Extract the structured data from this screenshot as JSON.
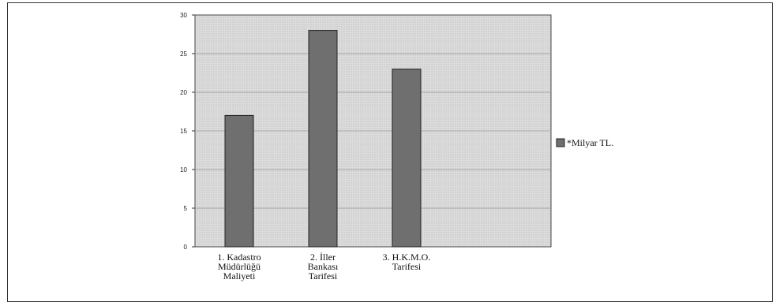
{
  "chart_data": {
    "type": "bar",
    "categories": [
      [
        "1. Kadastro",
        "Müdürlüğü",
        "Maliyeti"
      ],
      [
        "2. İller",
        "Bankası",
        "Tarifesi"
      ],
      [
        "3. H.K.M.O.",
        "Tarifesi"
      ]
    ],
    "series": [
      {
        "name": "*Milyar TL.",
        "values": [
          17,
          28,
          23
        ]
      }
    ],
    "ylim": [
      0,
      30
    ],
    "yticks": [
      "0",
      "5",
      "10",
      "15",
      "20",
      "25",
      "30"
    ],
    "grid": true,
    "legend_position": "right",
    "colors": {
      "bar": "#6f6f6f",
      "plot_bg": "#d9d9d9",
      "grid": "#9a9a9a"
    }
  }
}
